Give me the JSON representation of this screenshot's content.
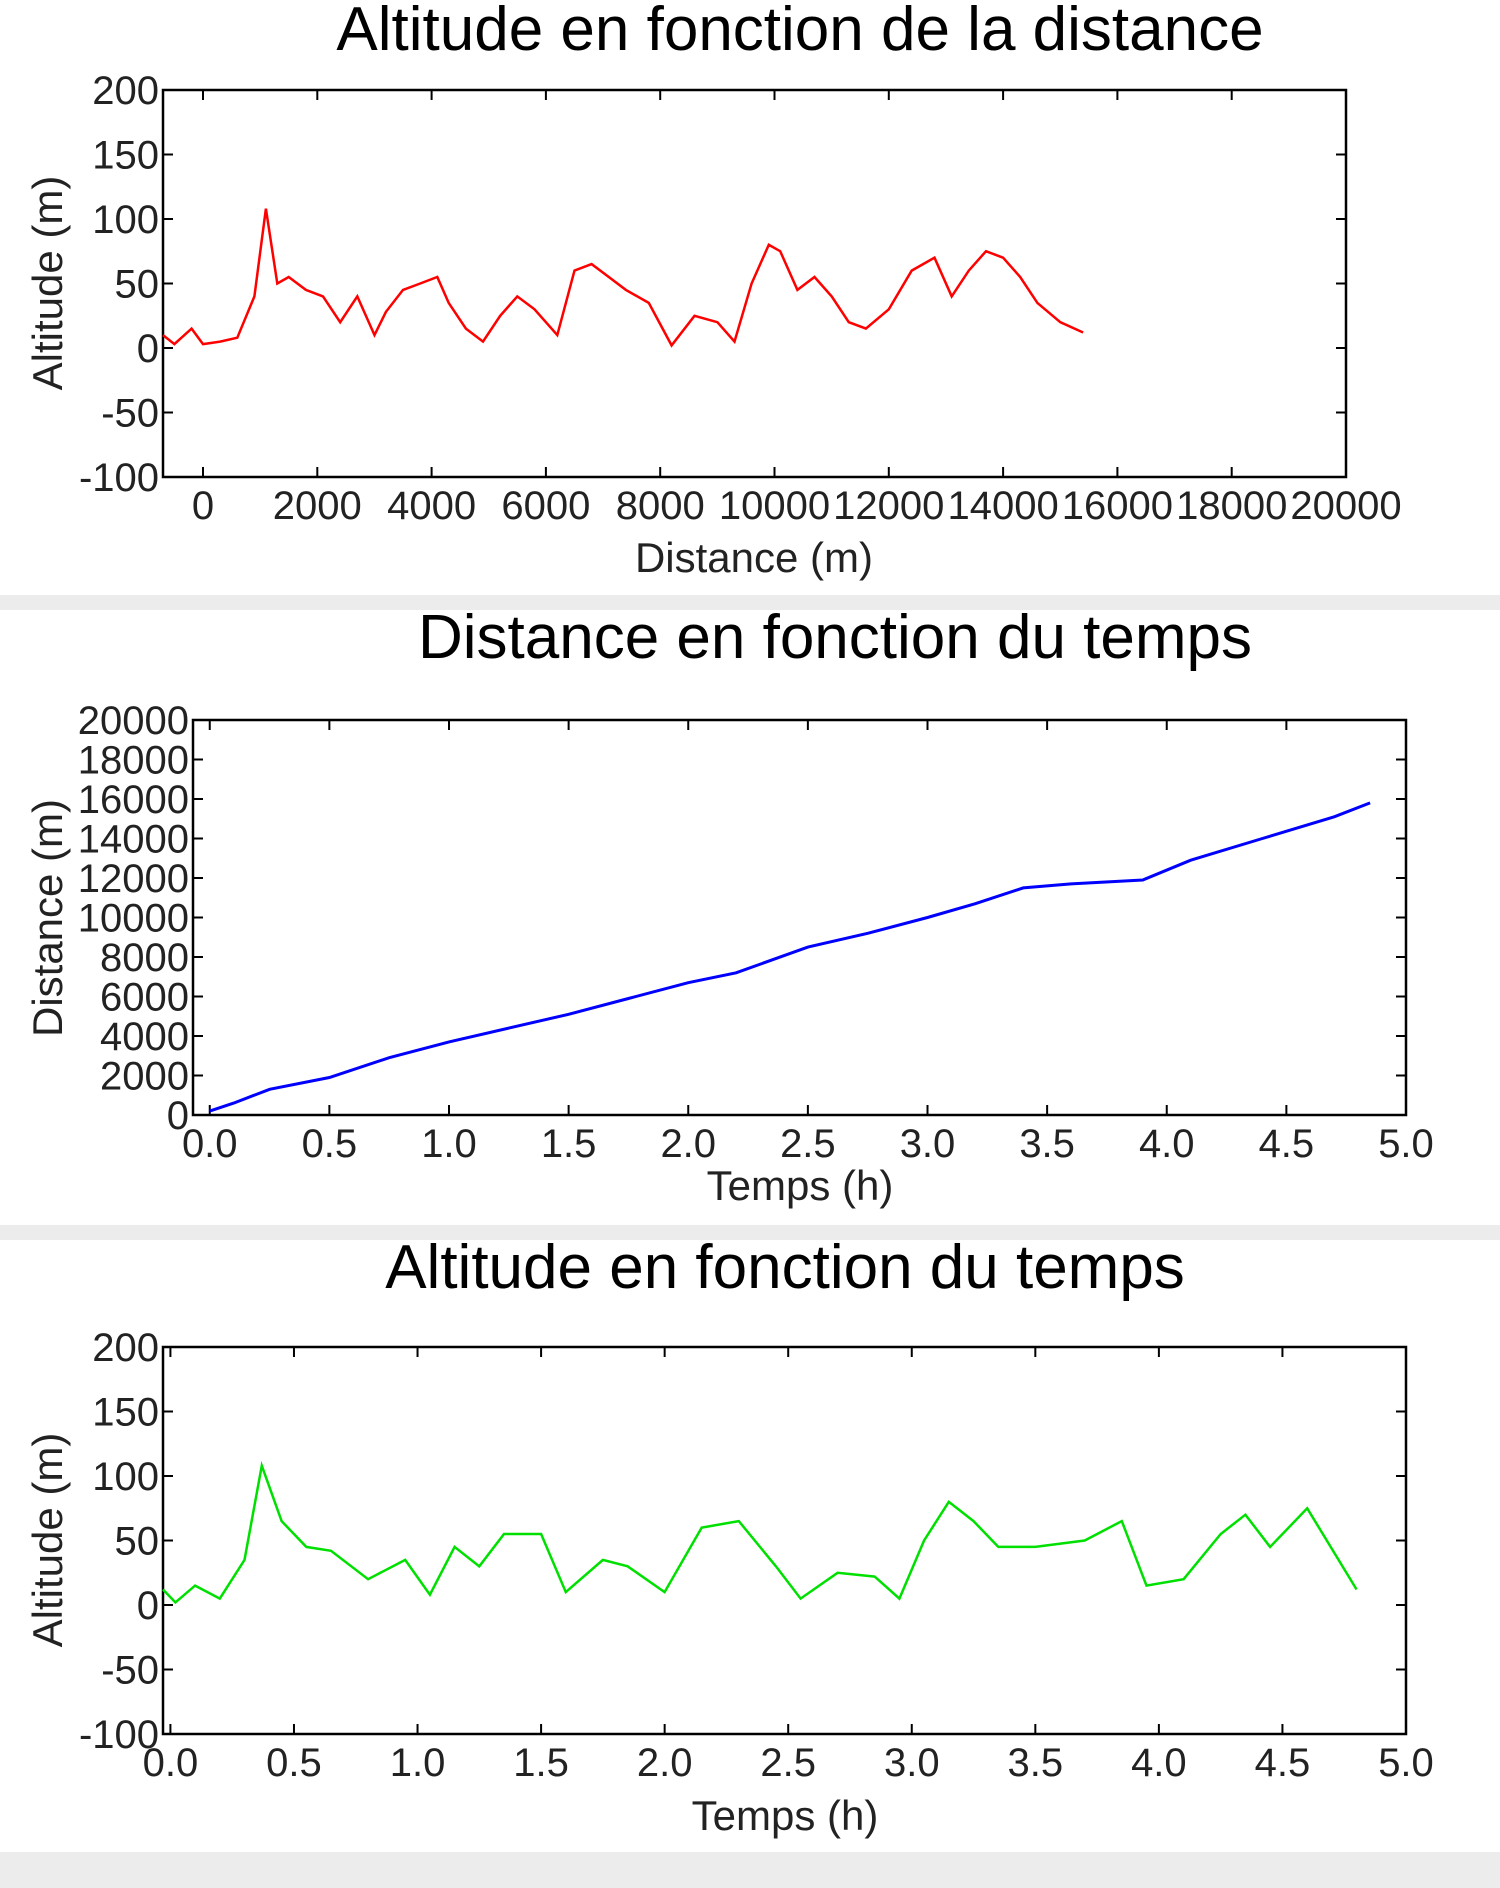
{
  "chart_data": [
    {
      "type": "line",
      "title": "Altitude en fonction de la distance",
      "xlabel": "Distance (m)",
      "ylabel": "Altitude (m)",
      "xlim": [
        -700,
        20000
      ],
      "ylim": [
        -100,
        200
      ],
      "xticks": [
        "0",
        "2000",
        "4000",
        "6000",
        "8000",
        "10000",
        "12000",
        "14000",
        "16000",
        "18000",
        "20000"
      ],
      "xtick_values": [
        0,
        2000,
        4000,
        6000,
        8000,
        10000,
        12000,
        14000,
        16000,
        18000,
        20000
      ],
      "yticks": [
        "200",
        "150",
        "100",
        "50",
        "0",
        "-50",
        "-100"
      ],
      "ytick_values": [
        200,
        150,
        100,
        50,
        0,
        -50,
        -100
      ],
      "color": "#ff0000",
      "series": [
        {
          "x": [
            -700,
            -500,
            -200,
            0,
            300,
            600,
            900,
            1100,
            1300,
            1500,
            1800,
            2100,
            2400,
            2700,
            3000,
            3200,
            3500,
            3800,
            4100,
            4300,
            4600,
            4900,
            5200,
            5500,
            5800,
            6200,
            6500,
            6800,
            7100,
            7400,
            7800,
            8200,
            8600,
            9000,
            9300,
            9600,
            9900,
            10100,
            10400,
            10700,
            11000,
            11300,
            11600,
            12000,
            12400,
            12800,
            13100,
            13400,
            13700,
            14000,
            14300,
            14600,
            15000,
            15400
          ],
          "y": [
            10,
            3,
            15,
            3,
            5,
            8,
            40,
            108,
            50,
            55,
            45,
            40,
            20,
            40,
            10,
            28,
            45,
            50,
            55,
            35,
            15,
            5,
            25,
            40,
            30,
            10,
            60,
            65,
            55,
            45,
            35,
            2,
            25,
            20,
            5,
            50,
            80,
            75,
            45,
            55,
            40,
            20,
            15,
            30,
            60,
            70,
            40,
            60,
            75,
            70,
            55,
            35,
            20,
            12
          ]
        }
      ]
    },
    {
      "type": "line",
      "title": "Distance en fonction du temps",
      "xlabel": "Temps (h)",
      "ylabel": "Distance (m)",
      "xlim": [
        -0.07,
        5.0
      ],
      "ylim": [
        0,
        20000
      ],
      "xticks": [
        "0.0",
        "0.5",
        "1.0",
        "1.5",
        "2.0",
        "2.5",
        "3.0",
        "3.5",
        "4.0",
        "4.5",
        "5.0"
      ],
      "xtick_values": [
        0.0,
        0.5,
        1.0,
        1.5,
        2.0,
        2.5,
        3.0,
        3.5,
        4.0,
        4.5,
        5.0
      ],
      "yticks": [
        "20000",
        "18000",
        "16000",
        "14000",
        "12000",
        "10000",
        "8000",
        "6000",
        "4000",
        "2000",
        "0"
      ],
      "ytick_values": [
        20000,
        18000,
        16000,
        14000,
        12000,
        10000,
        8000,
        6000,
        4000,
        2000,
        0
      ],
      "color": "#0000ff",
      "series": [
        {
          "x": [
            0.0,
            0.1,
            0.25,
            0.5,
            0.75,
            1.0,
            1.25,
            1.5,
            1.75,
            2.0,
            2.2,
            2.5,
            2.75,
            3.0,
            3.2,
            3.4,
            3.6,
            3.9,
            4.1,
            4.4,
            4.7,
            4.85
          ],
          "y": [
            200,
            600,
            1300,
            1900,
            2900,
            3700,
            4400,
            5100,
            5900,
            6700,
            7200,
            8500,
            9200,
            10000,
            10700,
            11500,
            11700,
            11900,
            12900,
            14000,
            15100,
            15800
          ]
        }
      ]
    },
    {
      "type": "line",
      "title": "Altitude en fonction du temps",
      "xlabel": "Temps (h)",
      "ylabel": "Altitude (m)",
      "xlim": [
        -0.03,
        5.0
      ],
      "ylim": [
        -100,
        200
      ],
      "xticks": [
        "0.0",
        "0.5",
        "1.0",
        "1.5",
        "2.0",
        "2.5",
        "3.0",
        "3.5",
        "4.0",
        "4.5",
        "5.0"
      ],
      "xtick_values": [
        0.0,
        0.5,
        1.0,
        1.5,
        2.0,
        2.5,
        3.0,
        3.5,
        4.0,
        4.5,
        5.0
      ],
      "yticks": [
        "200",
        "150",
        "100",
        "50",
        "0",
        "-50",
        "-100"
      ],
      "ytick_values": [
        200,
        150,
        100,
        50,
        0,
        -50,
        -100
      ],
      "color": "#00e000",
      "series": [
        {
          "x": [
            -0.03,
            0.02,
            0.1,
            0.2,
            0.3,
            0.37,
            0.45,
            0.55,
            0.65,
            0.8,
            0.95,
            1.05,
            1.15,
            1.25,
            1.35,
            1.5,
            1.6,
            1.75,
            1.85,
            2.0,
            2.15,
            2.3,
            2.45,
            2.55,
            2.7,
            2.85,
            2.95,
            3.05,
            3.15,
            3.25,
            3.35,
            3.5,
            3.7,
            3.85,
            3.95,
            4.1,
            4.25,
            4.35,
            4.45,
            4.6,
            4.8
          ],
          "y": [
            12,
            2,
            15,
            5,
            35,
            108,
            65,
            45,
            42,
            20,
            35,
            8,
            45,
            30,
            55,
            55,
            10,
            35,
            30,
            10,
            60,
            65,
            30,
            5,
            25,
            22,
            5,
            50,
            80,
            65,
            45,
            45,
            50,
            65,
            15,
            20,
            55,
            70,
            45,
            75,
            12
          ]
        }
      ]
    }
  ]
}
